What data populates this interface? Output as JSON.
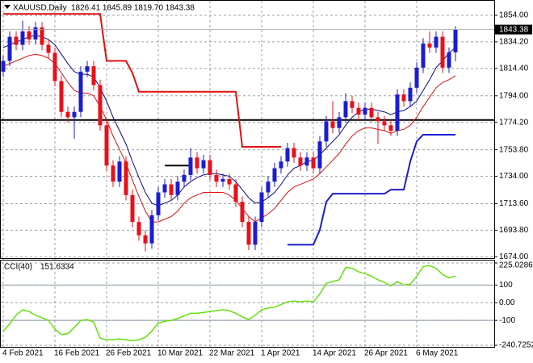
{
  "chart_data": [
    {
      "type": "candlestick",
      "title": "XAUUSD,Daily",
      "ohlc_label": "1826.41 1845.89 1819.70 1843.38",
      "categories": [
        "4 Feb 2021",
        null,
        null,
        null,
        null,
        null,
        null,
        null,
        "16 Feb 2021",
        null,
        null,
        null,
        null,
        null,
        null,
        null,
        "26 Feb 2021",
        null,
        null,
        null,
        null,
        null,
        null,
        null,
        "10 Mar 2021",
        null,
        null,
        null,
        null,
        null,
        null,
        null,
        "22 Mar 2021",
        null,
        null,
        null,
        null,
        null,
        null,
        null,
        "1 Apr 2021",
        null,
        null,
        null,
        null,
        null,
        null,
        null,
        "14 Apr 2021",
        null,
        null,
        null,
        null,
        null,
        null,
        null,
        "26 Apr 2021",
        null,
        null,
        null,
        null,
        null,
        null,
        null,
        "6 May 2021",
        null,
        null,
        null,
        null,
        null,
        null
      ],
      "open": [
        1812,
        1820,
        1838,
        1832,
        1842,
        1836,
        1845,
        1832,
        1826,
        1805,
        1782,
        1778,
        1782,
        1812,
        1816,
        1802,
        1772,
        1742,
        1730,
        1745,
        1720,
        1700,
        1690,
        1684,
        1705,
        1722,
        1728,
        1720,
        1730,
        1735,
        1748,
        1740,
        1746,
        1735,
        1730,
        1732,
        1728,
        1715,
        1700,
        1683,
        1700,
        1722,
        1730,
        1740,
        1745,
        1755,
        1748,
        1742,
        1748,
        1740,
        1760,
        1775,
        1770,
        1778,
        1790,
        1785,
        1780,
        1785,
        1778,
        1775,
        1772,
        1768,
        1795,
        1790,
        1800,
        1815,
        1833,
        1830,
        1838,
        1815,
        1826.41
      ],
      "high": [
        1824,
        1842,
        1842,
        1850,
        1846,
        1849,
        1849,
        1836,
        1830,
        1809,
        1786,
        1786,
        1816,
        1820,
        1820,
        1806,
        1776,
        1746,
        1749,
        1749,
        1724,
        1704,
        1694,
        1709,
        1726,
        1732,
        1732,
        1734,
        1739,
        1755,
        1752,
        1750,
        1750,
        1739,
        1736,
        1736,
        1732,
        1719,
        1704,
        1704,
        1726,
        1734,
        1744,
        1749,
        1759,
        1759,
        1752,
        1752,
        1752,
        1764,
        1779,
        1790,
        1782,
        1796,
        1794,
        1789,
        1789,
        1789,
        1782,
        1779,
        1776,
        1799,
        1799,
        1804,
        1819,
        1837,
        1842,
        1842,
        1842,
        1830,
        1845.89
      ],
      "low": [
        1808,
        1816,
        1828,
        1828,
        1832,
        1832,
        1828,
        1822,
        1801,
        1778,
        1774,
        1762,
        1778,
        1808,
        1798,
        1768,
        1738,
        1726,
        1726,
        1716,
        1696,
        1686,
        1678,
        1680,
        1701,
        1718,
        1716,
        1716,
        1726,
        1731,
        1736,
        1736,
        1731,
        1726,
        1726,
        1724,
        1711,
        1696,
        1679,
        1679,
        1696,
        1718,
        1726,
        1736,
        1741,
        1744,
        1738,
        1738,
        1736,
        1736,
        1756,
        1766,
        1766,
        1774,
        1781,
        1776,
        1776,
        1774,
        1758,
        1768,
        1764,
        1764,
        1786,
        1786,
        1796,
        1811,
        1826,
        1826,
        1811,
        1811,
        1819.7
      ],
      "close": [
        1820,
        1838,
        1832,
        1842,
        1836,
        1845,
        1832,
        1826,
        1805,
        1782,
        1778,
        1782,
        1812,
        1816,
        1802,
        1772,
        1742,
        1730,
        1745,
        1720,
        1700,
        1690,
        1684,
        1705,
        1722,
        1728,
        1720,
        1730,
        1735,
        1748,
        1740,
        1746,
        1735,
        1730,
        1732,
        1728,
        1715,
        1700,
        1683,
        1700,
        1722,
        1730,
        1740,
        1745,
        1755,
        1748,
        1742,
        1748,
        1740,
        1760,
        1775,
        1770,
        1778,
        1790,
        1785,
        1780,
        1785,
        1778,
        1775,
        1772,
        1768,
        1795,
        1790,
        1800,
        1815,
        1833,
        1830,
        1838,
        1815,
        1826.41,
        1843.38
      ],
      "up_color": "#1c1cd0",
      "down_color": "#e8101a",
      "series": [
        {
          "color": "#0a0a80",
          "width": 1,
          "values": [
            1830,
            1832,
            1834,
            1836,
            1838,
            1839,
            1838,
            1836,
            1832,
            1825,
            1818,
            1812,
            1810,
            1810,
            1808,
            1800,
            1790,
            1778,
            1768,
            1758,
            1745,
            1733,
            1722,
            1714,
            1712,
            1714,
            1716,
            1720,
            1726,
            1730,
            1733,
            1735,
            1736,
            1736,
            1735,
            1734,
            1730,
            1724,
            1718,
            1714,
            1715,
            1718,
            1722,
            1728,
            1735,
            1740,
            1742,
            1745,
            1746,
            1750,
            1755,
            1760,
            1765,
            1772,
            1778,
            1782,
            1784,
            1784,
            1783,
            1782,
            1780,
            1782,
            1783,
            1786,
            1790,
            1798,
            1806,
            1815,
            1820,
            1826,
            1830
          ]
        },
        {
          "color": "#e01010",
          "width": 1,
          "values": [
            1816,
            1818,
            1820,
            1822,
            1824,
            1825,
            1824,
            1822,
            1818,
            1811,
            1804,
            1798,
            1796,
            1796,
            1794,
            1786,
            1776,
            1764,
            1754,
            1744,
            1731,
            1719,
            1708,
            1700,
            1700,
            1702,
            1704,
            1708,
            1714,
            1718,
            1720,
            1722,
            1722,
            1722,
            1722,
            1720,
            1716,
            1710,
            1704,
            1700,
            1703,
            1706,
            1710,
            1716,
            1722,
            1726,
            1728,
            1730,
            1732,
            1736,
            1741,
            1746,
            1751,
            1758,
            1764,
            1768,
            1770,
            1770,
            1769,
            1768,
            1766,
            1768,
            1769,
            1772,
            1778,
            1786,
            1793,
            1800,
            1804,
            1806,
            1809
          ]
        },
        {
          "color": "#e01010",
          "width": 2,
          "values": [
            1855,
            1855,
            1855,
            1855,
            1855,
            1855,
            1855,
            1855,
            1855,
            1855,
            1855,
            1855,
            1855,
            1855,
            1855,
            1855,
            1820,
            1820,
            1820,
            1820,
            1811,
            1797,
            1797,
            1797,
            1797,
            1797,
            1797,
            1797,
            1797,
            1797,
            1797,
            1797,
            1797,
            1797,
            1797,
            1797,
            1797,
            1756,
            1756,
            1756,
            1756,
            1756,
            1756,
            1756,
            null,
            null,
            null,
            null,
            null,
            null,
            null,
            null,
            null,
            null,
            null,
            null,
            null,
            null,
            null,
            null,
            null,
            null,
            null,
            null,
            null,
            null,
            null,
            null,
            null,
            null,
            null
          ]
        },
        {
          "color": "#1c1cd0",
          "width": 2,
          "values": [
            null,
            null,
            null,
            null,
            null,
            null,
            null,
            null,
            null,
            null,
            null,
            null,
            null,
            null,
            null,
            null,
            null,
            null,
            null,
            null,
            null,
            null,
            null,
            null,
            null,
            null,
            null,
            null,
            null,
            null,
            null,
            null,
            null,
            null,
            null,
            null,
            null,
            null,
            null,
            null,
            null,
            null,
            null,
            null,
            1683,
            1683,
            1683,
            1683,
            1683,
            1694,
            1715,
            1721,
            1721,
            1721,
            1721,
            1721,
            1721,
            1721,
            1721,
            1721,
            1724,
            1724,
            1724,
            1745,
            1760,
            1765,
            1765,
            1765,
            1765,
            1765,
            1765
          ]
        },
        {
          "color": "#000000",
          "width": 2,
          "values": [
            null,
            null,
            null,
            null,
            null,
            null,
            null,
            null,
            null,
            null,
            null,
            null,
            null,
            null,
            null,
            null,
            null,
            null,
            null,
            null,
            null,
            null,
            null,
            null,
            null,
            1742,
            1742,
            1742,
            1742,
            1742,
            null,
            null,
            null,
            null,
            null,
            null,
            null,
            null,
            null,
            null,
            null,
            null,
            null,
            null,
            null,
            null,
            null,
            null,
            null,
            null,
            null,
            null,
            null,
            null,
            null,
            null,
            null,
            null,
            null,
            null,
            null,
            null,
            null,
            null,
            null,
            null,
            null,
            null,
            null,
            null,
            null
          ]
        }
      ],
      "levels": [
        {
          "value": 1776,
          "color": "#000000"
        }
      ],
      "ylim": [
        1673,
        1863
      ],
      "yticks": [
        {
          "value": 1854,
          "label": "1854.00"
        },
        {
          "value": 1834.2,
          "label": "1834.20"
        },
        {
          "value": 1814.4,
          "label": "1814.40"
        },
        {
          "value": 1794,
          "label": "1794.00"
        },
        {
          "value": 1774.2,
          "label": "1774.20"
        },
        {
          "value": 1753.8,
          "label": "1753.80"
        },
        {
          "value": 1734,
          "label": "1734.00"
        },
        {
          "value": 1713.6,
          "label": "1713.60"
        },
        {
          "value": 1693.8,
          "label": "1693.80"
        },
        {
          "value": 1674,
          "label": "1674.00"
        }
      ],
      "grid": true
    },
    {
      "type": "line",
      "title": "CCI(40)",
      "color": "#66e010",
      "values": [
        -160,
        -120,
        -70,
        -40,
        -50,
        -70,
        -85,
        -100,
        -150,
        -180,
        -175,
        -140,
        -100,
        -95,
        -110,
        -200,
        -210,
        -210,
        -205,
        -210,
        -215,
        -210,
        -195,
        -160,
        -115,
        -105,
        -100,
        -90,
        -75,
        -60,
        -60,
        -55,
        -50,
        -45,
        -40,
        -45,
        -60,
        -80,
        -95,
        -70,
        -40,
        -30,
        -25,
        -10,
        5,
        10,
        5,
        10,
        5,
        50,
        110,
        120,
        130,
        200,
        195,
        175,
        165,
        150,
        130,
        115,
        95,
        120,
        100,
        105,
        150,
        205,
        210,
        195,
        160,
        140,
        151.6334
      ],
      "levels": [
        100,
        -100
      ],
      "ylim": [
        -240.7252,
        225.0286
      ],
      "yticks": [
        225.0286,
        100,
        {
          "value": 0,
          "label": "0.00"
        },
        -100,
        -240.7252
      ],
      "grid": true
    }
  ]
}
